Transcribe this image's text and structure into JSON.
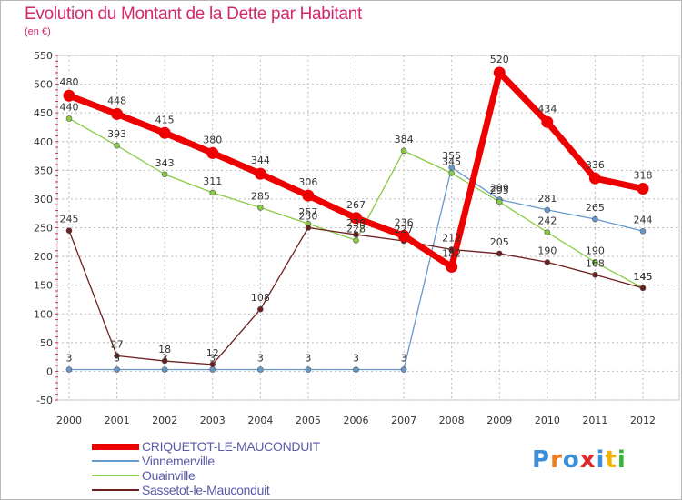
{
  "title": "Evolution du Montant de la Dette par Habitant",
  "unit": "(en €)",
  "logo": {
    "text": "Proxiti",
    "colors": [
      "#3b8fd8",
      "#ee7d1f",
      "#3b8fd8",
      "#e02a2a",
      "#3b8fd8",
      "#f2b300",
      "#3ab33a"
    ]
  },
  "chart_data": {
    "type": "line",
    "title": "Evolution du Montant de la Dette par Habitant",
    "ylabel": "(en €)",
    "xlabel": "",
    "categories": [
      "2000",
      "2001",
      "2002",
      "2003",
      "2004",
      "2005",
      "2006",
      "2007",
      "2008",
      "2009",
      "2010",
      "2011",
      "2012"
    ],
    "ylim": [
      -50,
      550
    ],
    "yticks": [
      -50,
      0,
      50,
      100,
      150,
      200,
      250,
      300,
      350,
      400,
      450,
      500,
      550
    ],
    "ytick_labels": [
      "-50",
      "0",
      "50",
      "100",
      "150",
      "200",
      "250",
      "300",
      "350",
      "400",
      "450",
      "500",
      "550"
    ],
    "grid": true,
    "legend": "bottom-left",
    "series": [
      {
        "name": "CRIQUETOT-LE-MAUCONDUIT",
        "color": "#ee0000",
        "values": [
          480,
          448,
          415,
          380,
          344,
          306,
          267,
          236,
          182,
          520,
          434,
          336,
          318
        ],
        "labels": [
          "480",
          "448",
          "415",
          "380",
          "344",
          "306",
          "267",
          "236",
          "182",
          "520",
          "434",
          "336",
          "318"
        ]
      },
      {
        "name": "Vinnemerville",
        "color": "#6699cc",
        "values": [
          3,
          3,
          3,
          3,
          3,
          3,
          3,
          3,
          355,
          299,
          281,
          265,
          244
        ],
        "labels": [
          "3",
          "3",
          "3",
          "3",
          "3",
          "3",
          "3",
          "3",
          "355",
          "299",
          "281",
          "265",
          "244"
        ]
      },
      {
        "name": "Ouainville",
        "color": "#88cc44",
        "values": [
          440,
          393,
          343,
          311,
          285,
          257,
          228,
          384,
          345,
          295,
          242,
          190,
          145
        ],
        "labels": [
          "440",
          "393",
          "343",
          "311",
          "285",
          "257",
          "228",
          "384",
          "345",
          "295",
          "242",
          "190",
          "145"
        ]
      },
      {
        "name": "Sassetot-le-Mauconduit",
        "color": "#6e1f1f",
        "values": [
          245,
          27,
          18,
          12,
          108,
          250,
          238,
          227,
          212,
          205,
          190,
          168,
          145
        ],
        "labels": [
          "245",
          "27",
          "18",
          "12",
          "108",
          "250",
          "238",
          "227",
          "212",
          "205",
          "190",
          "168",
          "145"
        ]
      }
    ]
  }
}
